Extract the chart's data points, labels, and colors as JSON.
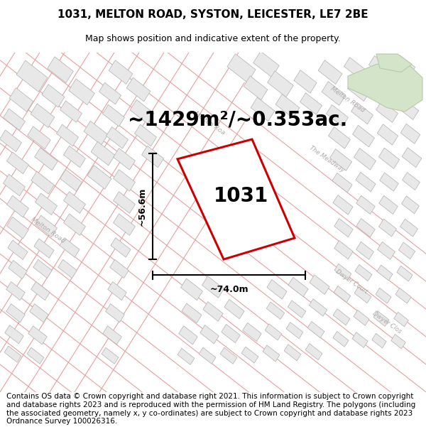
{
  "title": "1031, MELTON ROAD, SYSTON, LEICESTER, LE7 2BE",
  "subtitle": "Map shows position and indicative extent of the property.",
  "area_text": "~1429m²/~0.353ac.",
  "property_number": "1031",
  "width_label": "~74.0m",
  "height_label": "~56.6m",
  "footer": "Contains OS data © Crown copyright and database right 2021. This information is subject to Crown copyright and database rights 2023 and is reproduced with the permission of HM Land Registry. The polygons (including the associated geometry, namely x, y co-ordinates) are subject to Crown copyright and database rights 2023 Ordnance Survey 100026316.",
  "bg_color": "#ffffff",
  "map_bg": "#ffffff",
  "plot_color": "#cc0000",
  "road_boundary_color": "#e8a0a0",
  "building_face": "#e8e8e8",
  "building_edge": "#b0b0b0",
  "road_label_color": "#c0a0a0",
  "green_color": "#d4e4c8",
  "title_fontsize": 11,
  "subtitle_fontsize": 9,
  "area_fontsize": 20,
  "number_fontsize": 20,
  "footer_fontsize": 7.5
}
